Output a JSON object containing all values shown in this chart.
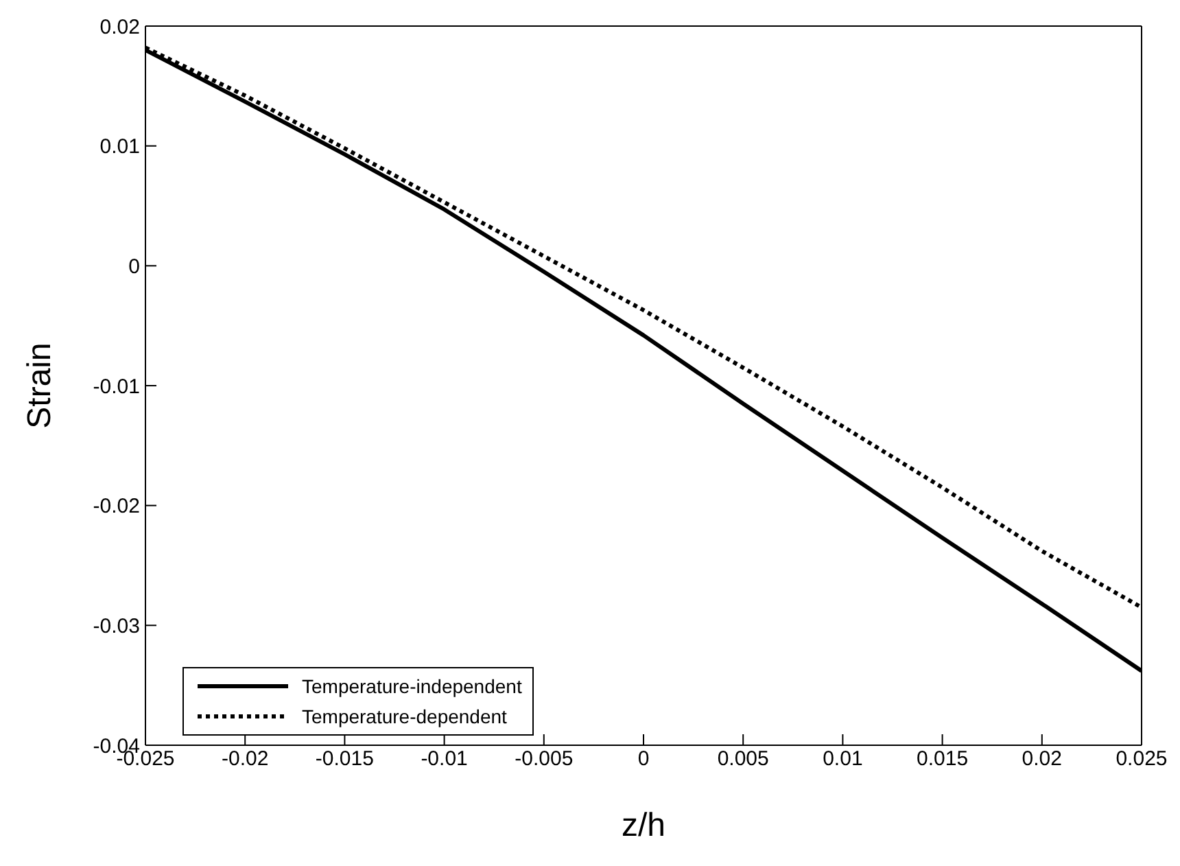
{
  "chart_data": {
    "type": "line",
    "xlabel": "z/h",
    "ylabel": "Strain",
    "x": [
      -0.025,
      -0.02,
      -0.015,
      -0.01,
      -0.005,
      0,
      0.005,
      0.01,
      0.015,
      0.02,
      0.025
    ],
    "series": [
      {
        "name": "Temperature-independent",
        "color": "#000000",
        "line_style": "solid",
        "values": [
          0.018,
          0.0137,
          0.0093,
          0.0047,
          -0.0005,
          -0.0058,
          -0.0115,
          -0.0171,
          -0.0227,
          -0.0282,
          -0.0338
        ]
      },
      {
        "name": "Temperature-dependent",
        "color": "#000000",
        "line_style": "dotted",
        "values": [
          0.0182,
          0.0142,
          0.0098,
          0.0053,
          0.0008,
          -0.0037,
          -0.0085,
          -0.0134,
          -0.0185,
          -0.0238,
          -0.0285
        ]
      }
    ],
    "xlim": [
      -0.025,
      0.025
    ],
    "xticks": [
      -0.025,
      -0.02,
      -0.015,
      -0.01,
      -0.005,
      0,
      0.005,
      0.01,
      0.015,
      0.02,
      0.025
    ],
    "ylim": [
      -0.04,
      0.02
    ],
    "yticks": [
      -0.04,
      -0.03,
      -0.02,
      -0.01,
      0,
      0.01,
      0.02
    ],
    "grid": false,
    "legend": "bottom left",
    "marker": "none"
  }
}
